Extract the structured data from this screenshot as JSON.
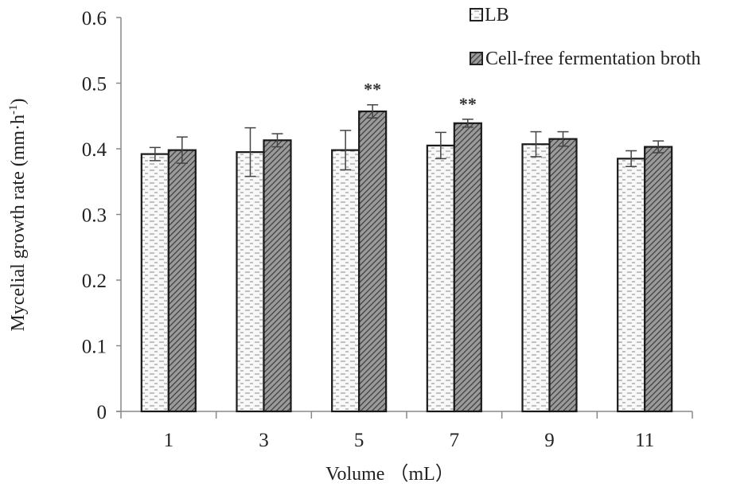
{
  "chart_data": {
    "type": "bar",
    "title": "",
    "xlabel": "Volume （mL）",
    "ylabel": "Mycelial growth rate (mm·h⁻¹)",
    "ylim": [
      0,
      0.6
    ],
    "yticks": [
      "0",
      "0.1",
      "0.2",
      "0.3",
      "0.4",
      "0.5",
      "0.6"
    ],
    "categories": [
      "1",
      "3",
      "5",
      "7",
      "9",
      "11"
    ],
    "grid": false,
    "legend_position": "top-right",
    "series": [
      {
        "name": "LB",
        "pattern": "dotted-dashes",
        "values": [
          0.392,
          0.395,
          0.398,
          0.405,
          0.407,
          0.385
        ],
        "errors": [
          0.01,
          0.037,
          0.03,
          0.02,
          0.019,
          0.012
        ]
      },
      {
        "name": "Cell-free fermentation broth",
        "pattern": "diagonal-hatch",
        "values": [
          0.398,
          0.413,
          0.457,
          0.439,
          0.415,
          0.403
        ],
        "errors": [
          0.02,
          0.01,
          0.01,
          0.006,
          0.011,
          0.009
        ]
      }
    ],
    "annotations": [
      {
        "category": "5",
        "series": "Cell-free fermentation broth",
        "text": "**"
      },
      {
        "category": "7",
        "series": "Cell-free fermentation broth",
        "text": "**"
      }
    ]
  },
  "legend": {
    "items": [
      {
        "label": "LB"
      },
      {
        "label": "Cell-free fermentation broth"
      }
    ]
  },
  "axes": {
    "xlabel": "Volume （mL）",
    "ylabel_main": "Mycelial growth rate (mm·h",
    "ylabel_sup": "-1",
    "ylabel_close": ")"
  }
}
